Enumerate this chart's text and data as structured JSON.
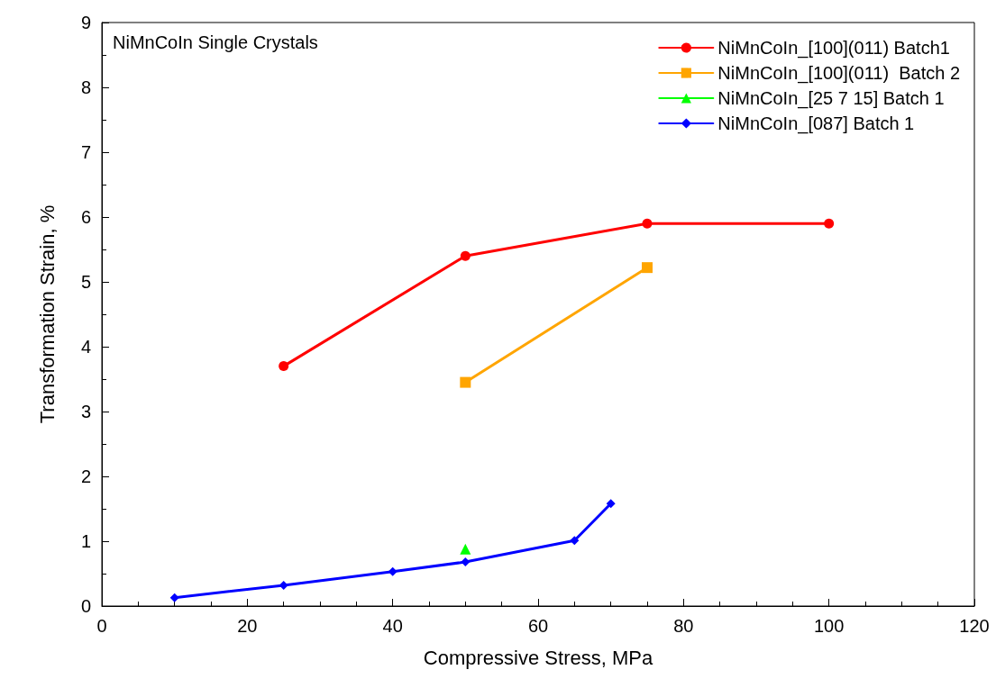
{
  "chart_data": {
    "type": "line",
    "xlabel": "Compressive Stress, MPa",
    "ylabel": "Transformation Strain, %",
    "annotations": [
      "NiMnCoIn Single Crystals"
    ],
    "series": [
      {
        "name": "NiMnCoIn_[100](011) Batch1",
        "color": "#ff0000",
        "marker": "circle",
        "x": [
          25,
          50,
          75,
          100
        ],
        "values": [
          3.7,
          5.4,
          5.9,
          5.9
        ]
      },
      {
        "name": "NiMnCoIn_[100](011)  Batch 2",
        "color": "#ffa500",
        "marker": "square",
        "x": [
          50,
          75
        ],
        "values": [
          3.45,
          5.22
        ]
      },
      {
        "name": "NiMnCoIn_[25 7 15] Batch 1",
        "color": "#00ff00",
        "marker": "triangle",
        "x": [
          50
        ],
        "values": [
          0.88
        ]
      },
      {
        "name": "NiMnCoIn_[087] Batch 1",
        "color": "#0000ff",
        "marker": "diamond",
        "x": [
          10,
          25,
          40,
          50,
          65,
          70
        ],
        "values": [
          0.13,
          0.32,
          0.53,
          0.68,
          1.01,
          1.58
        ]
      }
    ],
    "xlim": [
      0,
      120
    ],
    "xticks": [
      0,
      20,
      40,
      60,
      80,
      100,
      120
    ],
    "ylim": [
      0,
      9
    ],
    "yticks": [
      0,
      1,
      2,
      3,
      4,
      5,
      6,
      7,
      8,
      9
    ],
    "grid": false,
    "legend": "top right",
    "line_style": "solid"
  }
}
